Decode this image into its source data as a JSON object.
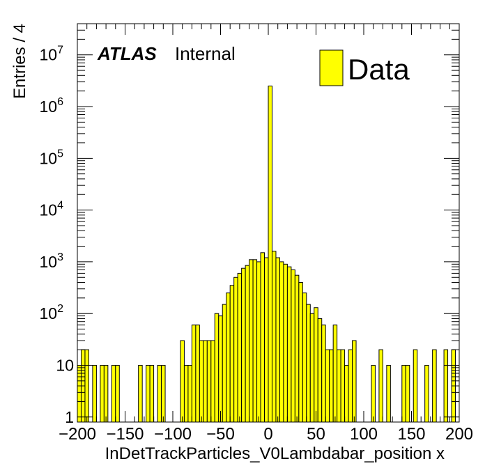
{
  "chart_data": {
    "type": "bar",
    "style": "step-histogram",
    "xlabel": "InDetTrackParticles_V0Lambdabar_position x",
    "ylabel": "Entries / 4",
    "xlim": [
      -200,
      200
    ],
    "ylim": [
      0.8,
      40000000
    ],
    "yscale": "log",
    "bin_width": 4,
    "x_ticks": [
      "−200",
      "−150",
      "−100",
      "−50",
      "0",
      "50",
      "100",
      "150",
      "200"
    ],
    "y_ticks": [
      {
        "base": "1",
        "exp": ""
      },
      {
        "base": "10",
        "exp": ""
      },
      {
        "base": "10",
        "exp": "2"
      },
      {
        "base": "10",
        "exp": "3"
      },
      {
        "base": "10",
        "exp": "4"
      },
      {
        "base": "10",
        "exp": "5"
      },
      {
        "base": "10",
        "exp": "6"
      },
      {
        "base": "10",
        "exp": "7"
      }
    ],
    "legend": {
      "entries": [
        "Data"
      ],
      "position": "top-right"
    },
    "annotation": {
      "experiment": "ATLAS",
      "status": "Internal"
    },
    "series": [
      {
        "name": "Data",
        "color": "#ffff00",
        "edge_color": "#000000",
        "bins": [
          {
            "x": -200,
            "y": 10
          },
          {
            "x": -196,
            "y": 20
          },
          {
            "x": -192,
            "y": 20
          },
          {
            "x": -184,
            "y": 10
          },
          {
            "x": -176,
            "y": 10
          },
          {
            "x": -172,
            "y": 10
          },
          {
            "x": -164,
            "y": 10
          },
          {
            "x": -160,
            "y": 10
          },
          {
            "x": -136,
            "y": 10
          },
          {
            "x": -128,
            "y": 10
          },
          {
            "x": -124,
            "y": 10
          },
          {
            "x": -116,
            "y": 10
          },
          {
            "x": -112,
            "y": 10
          },
          {
            "x": -92,
            "y": 30
          },
          {
            "x": -88,
            "y": 10
          },
          {
            "x": -84,
            "y": 10
          },
          {
            "x": -80,
            "y": 60
          },
          {
            "x": -76,
            "y": 60
          },
          {
            "x": -72,
            "y": 30
          },
          {
            "x": -68,
            "y": 30
          },
          {
            "x": -64,
            "y": 30
          },
          {
            "x": -60,
            "y": 30
          },
          {
            "x": -56,
            "y": 100
          },
          {
            "x": -52,
            "y": 90
          },
          {
            "x": -48,
            "y": 150
          },
          {
            "x": -44,
            "y": 250
          },
          {
            "x": -40,
            "y": 350
          },
          {
            "x": -36,
            "y": 500
          },
          {
            "x": -32,
            "y": 600
          },
          {
            "x": -28,
            "y": 750
          },
          {
            "x": -24,
            "y": 850
          },
          {
            "x": -20,
            "y": 1100
          },
          {
            "x": -16,
            "y": 1100
          },
          {
            "x": -12,
            "y": 1000
          },
          {
            "x": -8,
            "y": 1500
          },
          {
            "x": -4,
            "y": 1200
          },
          {
            "x": 0,
            "y": 2500000
          },
          {
            "x": 4,
            "y": 1600
          },
          {
            "x": 8,
            "y": 1200
          },
          {
            "x": 12,
            "y": 1000
          },
          {
            "x": 16,
            "y": 900
          },
          {
            "x": 20,
            "y": 800
          },
          {
            "x": 24,
            "y": 700
          },
          {
            "x": 28,
            "y": 550
          },
          {
            "x": 32,
            "y": 400
          },
          {
            "x": 36,
            "y": 250
          },
          {
            "x": 40,
            "y": 150
          },
          {
            "x": 44,
            "y": 100
          },
          {
            "x": 48,
            "y": 130
          },
          {
            "x": 52,
            "y": 80
          },
          {
            "x": 56,
            "y": 60
          },
          {
            "x": 60,
            "y": 20
          },
          {
            "x": 64,
            "y": 20
          },
          {
            "x": 68,
            "y": 60
          },
          {
            "x": 72,
            "y": 20
          },
          {
            "x": 76,
            "y": 20
          },
          {
            "x": 80,
            "y": 10
          },
          {
            "x": 84,
            "y": 20
          },
          {
            "x": 88,
            "y": 30
          },
          {
            "x": 108,
            "y": 10
          },
          {
            "x": 116,
            "y": 20
          },
          {
            "x": 124,
            "y": 10
          },
          {
            "x": 140,
            "y": 10
          },
          {
            "x": 144,
            "y": 10
          },
          {
            "x": 152,
            "y": 20
          },
          {
            "x": 164,
            "y": 10
          },
          {
            "x": 172,
            "y": 20
          },
          {
            "x": 184,
            "y": 20
          },
          {
            "x": 192,
            "y": 20
          }
        ]
      }
    ]
  }
}
